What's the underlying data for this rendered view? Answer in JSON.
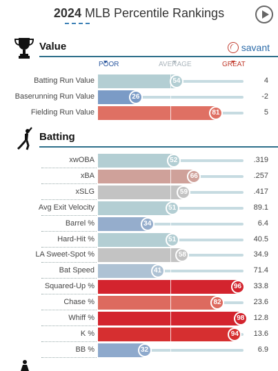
{
  "header": {
    "year": "2024",
    "title": "MLB Percentile Rankings"
  },
  "savant_label": "savant",
  "scale": {
    "poor": "POOR",
    "average": "AVERAGE",
    "great": "GREAT"
  },
  "sections": [
    {
      "title": "Value",
      "icon": "trophy-icon"
    },
    {
      "title": "Batting",
      "icon": "batter-icon"
    }
  ],
  "colors": {
    "track": "#c6dbe1",
    "accent": "#2d6f8a"
  },
  "chart_data": {
    "type": "bar",
    "xlim": [
      0,
      100
    ],
    "groups": [
      {
        "section": "Value",
        "metrics": [
          {
            "name": "Batting Run Value",
            "percentile": 54,
            "value": "4",
            "color": "#b3ced3"
          },
          {
            "name": "Baserunning Run Value",
            "percentile": 26,
            "value": "-2",
            "color": "#7b9bc6"
          },
          {
            "name": "Fielding Run Value",
            "percentile": 81,
            "value": "5",
            "color": "#df7063"
          }
        ]
      },
      {
        "section": "Batting",
        "metrics": [
          {
            "name": "xwOBA",
            "percentile": 52,
            "value": ".319",
            "color": "#b3ced3"
          },
          {
            "name": "xBA",
            "percentile": 66,
            "value": ".257",
            "color": "#cfa19a"
          },
          {
            "name": "xSLG",
            "percentile": 59,
            "value": ".417",
            "color": "#c3c3c3"
          },
          {
            "name": "Avg Exit Velocity",
            "percentile": 51,
            "value": "89.1",
            "color": "#b3ced3"
          },
          {
            "name": "Barrel %",
            "percentile": 34,
            "value": "6.4",
            "color": "#95adcc"
          },
          {
            "name": "Hard-Hit %",
            "percentile": 51,
            "value": "40.5",
            "color": "#b3ced3"
          },
          {
            "name": "LA Sweet-Spot %",
            "percentile": 58,
            "value": "34.9",
            "color": "#c3c3c3"
          },
          {
            "name": "Bat Speed",
            "percentile": 41,
            "value": "71.4",
            "color": "#aec2d4"
          },
          {
            "name": "Squared-Up %",
            "percentile": 96,
            "value": "33.8",
            "color": "#d3242e"
          },
          {
            "name": "Chase %",
            "percentile": 82,
            "value": "23.6",
            "color": "#dd6a5f"
          },
          {
            "name": "Whiff %",
            "percentile": 98,
            "value": "12.8",
            "color": "#d3242e"
          },
          {
            "name": "K %",
            "percentile": 94,
            "value": "13.6",
            "color": "#d62f30"
          },
          {
            "name": "BB %",
            "percentile": 32,
            "value": "6.9",
            "color": "#8ea9cc"
          }
        ]
      }
    ]
  }
}
